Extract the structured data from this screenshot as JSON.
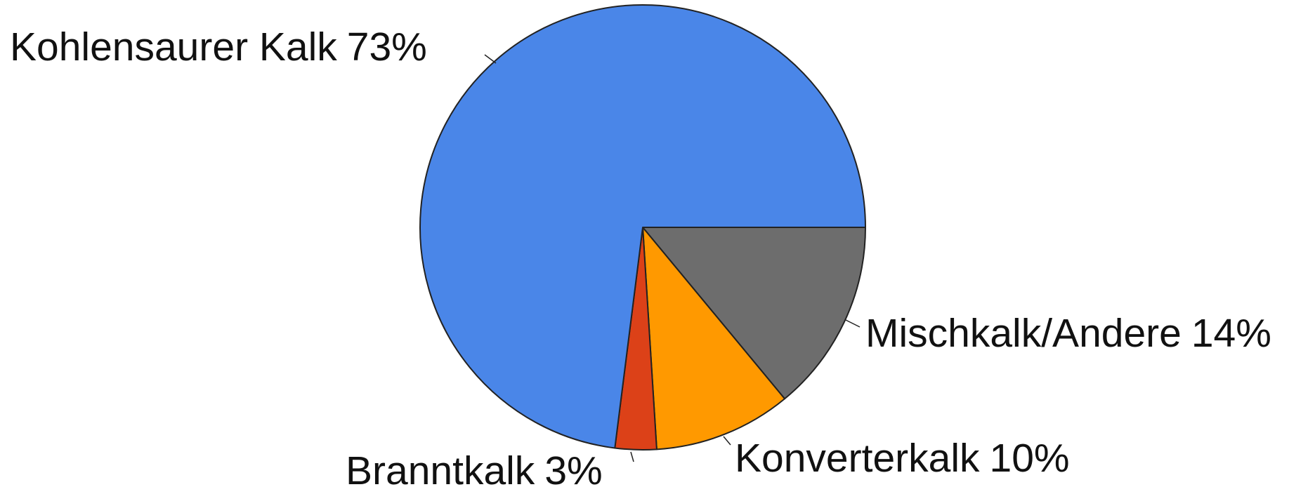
{
  "chart_data": {
    "type": "pie",
    "categories": [
      "Mischkalk/Andere",
      "Konverterkalk",
      "Branntkalk",
      "Kohlensaurer Kalk"
    ],
    "values": [
      14,
      10,
      3,
      73
    ],
    "value_labels": [
      "14%",
      "10%",
      "3%",
      "73%"
    ],
    "colors": [
      "#6d6d6d",
      "#ff9900",
      "#dc4118",
      "#4a86e8"
    ],
    "start_angle": 0,
    "direction": "clockwise"
  }
}
